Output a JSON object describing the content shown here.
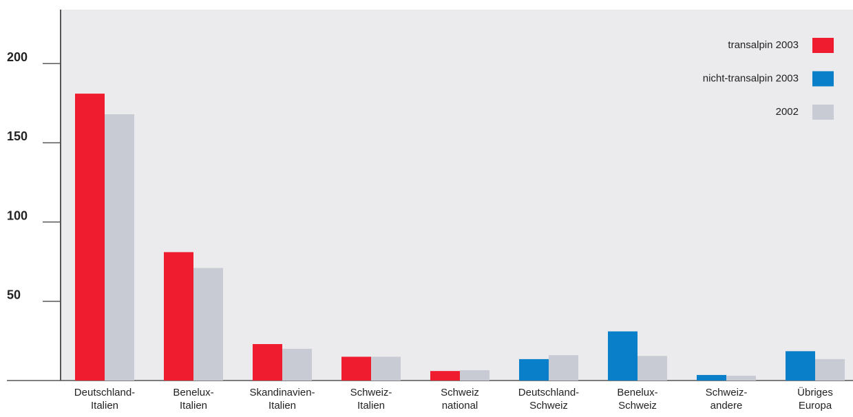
{
  "chart_data": {
    "type": "bar",
    "categories": [
      "Deutschland-\nItalien",
      "Benelux-\nItalien",
      "Skandinavien-\nItalien",
      "Schweiz-\nItalien",
      "Schweiz\nnational",
      "Deutschland-\nSchweiz",
      "Benelux-\nSchweiz",
      "Schweiz-\nandere",
      "Übriges\nEuropa"
    ],
    "series": [
      {
        "name": "transalpin 2003",
        "color": "#ee1c2e",
        "values": [
          181,
          81,
          23,
          15,
          6,
          null,
          null,
          null,
          null
        ]
      },
      {
        "name": "nicht-transalpin 2003",
        "color": "#0a7fc9",
        "values": [
          null,
          null,
          null,
          null,
          null,
          13.5,
          31,
          3.5,
          18.5
        ]
      },
      {
        "name": "2002",
        "color": "#c8cbd3",
        "values": [
          168,
          71,
          20,
          15,
          6.5,
          16,
          15.5,
          3,
          13.5
        ]
      }
    ],
    "ylim": [
      0,
      234
    ],
    "yticks": [
      50,
      100,
      150,
      200
    ],
    "legend": "upper right"
  }
}
